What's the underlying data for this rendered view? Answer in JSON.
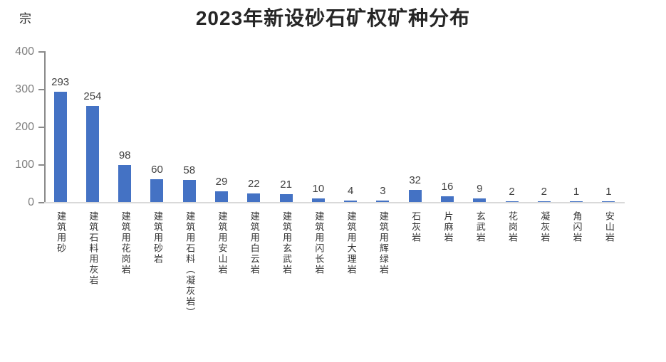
{
  "chart_data": {
    "type": "bar",
    "title": "2023年新设砂石矿权矿种分布",
    "unit_label": "宗",
    "categories": [
      "建筑用砂",
      "建筑石料用灰岩",
      "建筑用花岗岩",
      "建筑用砂岩",
      "建筑用石料（凝灰岩）",
      "建筑用安山岩",
      "建筑用白云岩",
      "建筑用玄武岩",
      "建筑用闪长岩",
      "建筑用大理岩",
      "建筑用辉绿岩",
      "石灰岩",
      "片麻岩",
      "玄武岩",
      "花岗岩",
      "凝灰岩",
      "角闪岩",
      "安山岩"
    ],
    "values": [
      293,
      254,
      98,
      60,
      58,
      29,
      22,
      21,
      10,
      4,
      3,
      32,
      16,
      9,
      2,
      2,
      1,
      1
    ],
    "xlabel": "",
    "ylabel": "宗",
    "ylim": [
      0,
      400
    ],
    "yticks": [
      0,
      100,
      200,
      300,
      400
    ],
    "grid": false,
    "legend": "none",
    "data_labels": true,
    "colors": {
      "bar": "#4472C4",
      "title_text": "#262626",
      "value_label_text": "#404040",
      "axis_tick_text": "#7f7f7f",
      "axis_line": "#8a8a8a",
      "baseline": "#d9d9d9",
      "category_text": "#333333",
      "background": "#ffffff"
    }
  }
}
